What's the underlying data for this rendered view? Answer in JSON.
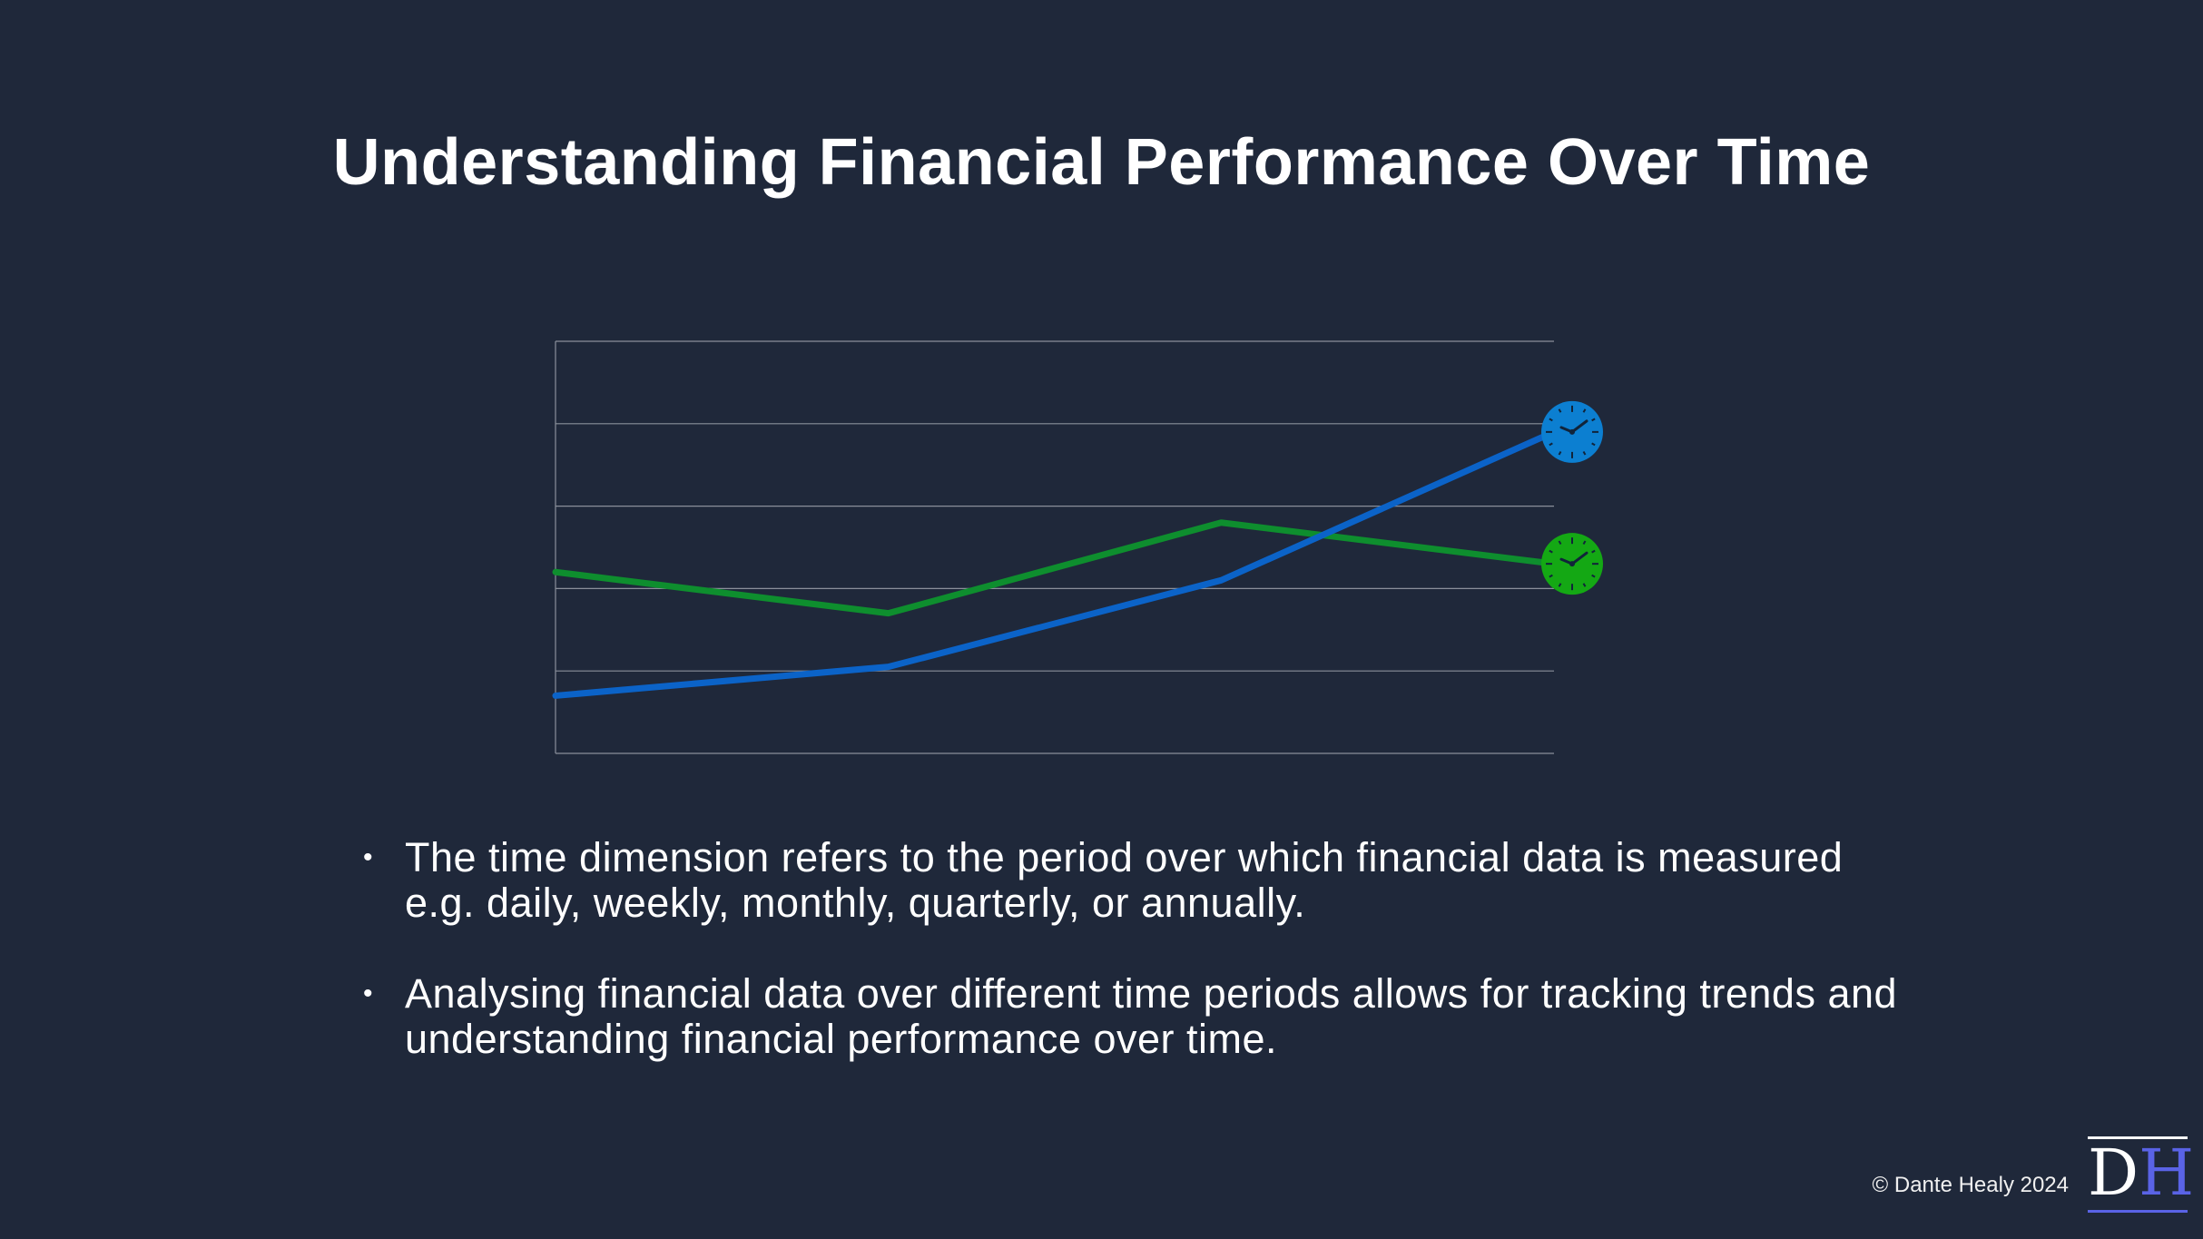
{
  "slide": {
    "title": "Understanding Financial Performance Over Time"
  },
  "chart_data": {
    "type": "line",
    "title": "",
    "xlabel": "",
    "ylabel": "",
    "x": [
      1,
      2,
      3,
      4
    ],
    "ylim": [
      0,
      5
    ],
    "gridlines": 5,
    "grid": true,
    "series": [
      {
        "name": "green-series",
        "color": "#0e8e2e",
        "values": [
          2.2,
          1.7,
          2.8,
          2.3
        ]
      },
      {
        "name": "blue-series",
        "color": "#0b63c8",
        "values": [
          0.7,
          1.05,
          2.1,
          3.9
        ]
      }
    ],
    "markers": [
      {
        "series": "blue-series",
        "icon": "clock-icon",
        "color": "#0c7fd1"
      },
      {
        "series": "green-series",
        "icon": "clock-icon",
        "color": "#14a814"
      }
    ]
  },
  "bullets": [
    {
      "marker": "•",
      "text": "The time dimension refers to the period over which financial data is measured e.g. daily, weekly, monthly, quarterly, or annually."
    },
    {
      "marker": "•",
      "text": "Analysing financial data over different time periods allows for tracking trends and understanding financial performance over time."
    }
  ],
  "footer": {
    "credit": "© Dante Healy 2024",
    "logo_d": "D",
    "logo_h": "H"
  }
}
